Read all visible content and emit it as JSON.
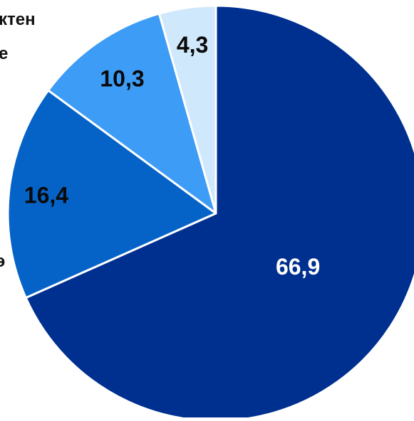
{
  "chart_data": {
    "type": "pie",
    "slices": [
      {
        "value": 66.9,
        "label": "66,9",
        "color": "#00308f",
        "label_color": "#ffffff"
      },
      {
        "value": 16.4,
        "label": "16,4",
        "color": "#0563c8",
        "label_color": "#0a0a0a"
      },
      {
        "value": 10.3,
        "label": "10,3",
        "color": "#3d9cf5",
        "label_color": "#0a0a0a"
      },
      {
        "value": 4.3,
        "label": "4,3",
        "color": "#cfe8fb",
        "label_color": "#0a0a0a"
      }
    ],
    "start_angle": "12 o'clock",
    "direction": "clockwise",
    "legend_fragments": [
      "ктен",
      "е",
      "э"
    ]
  }
}
